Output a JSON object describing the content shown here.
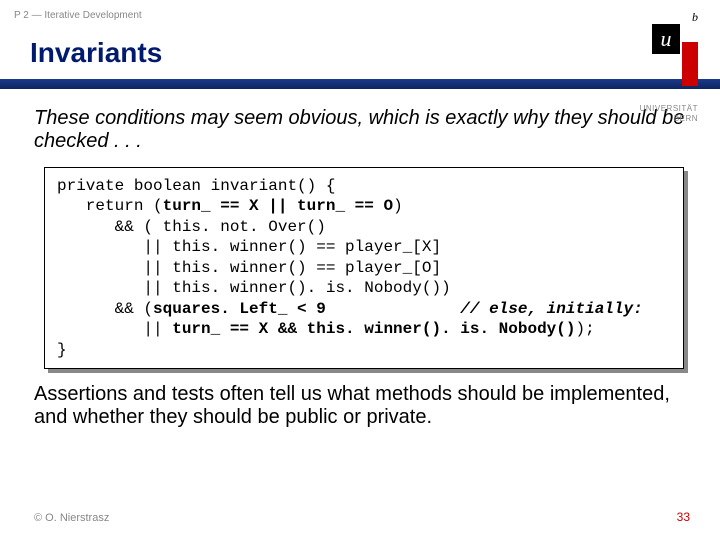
{
  "header": {
    "breadcrumb": "P 2 — Iterative Development",
    "title": "Invariants"
  },
  "logo": {
    "superscript": "b",
    "letter": "u",
    "caption_line1": "UNIVERSITÄT",
    "caption_line2": "BERN"
  },
  "body": {
    "lead": "These conditions may seem obvious, which is exactly why they should be checked . . .",
    "follow": "Assertions and tests often tell us what methods should be implemented, and whether they should be public or private."
  },
  "code": {
    "l1a": "private boolean invariant() {",
    "l2a": "   return (",
    "l2b": "turn_ == X || turn_ == O",
    "l2c": ")",
    "l3a": "      && ( this. not. Over()",
    "l4a": "         || this. winner() == player_[X]",
    "l5a": "         || this. winner() == player_[O]",
    "l6a": "         || this. winner(). is. Nobody())",
    "l7a": "      && (",
    "l7b": "squares. Left_ < 9",
    "l7c": "              ",
    "l7d": "// else, initially:",
    "l8a": "         || ",
    "l8b": "turn_ == X && this. winner(). is. Nobody()",
    "l8c": ");",
    "l9a": "}"
  },
  "footer": {
    "copyright": "© O. Nierstrasz",
    "page": "33"
  },
  "colors": {
    "title": "#001a6e",
    "underline": "#1a3a8a",
    "accent_red": "#cc0000",
    "muted": "#888888"
  }
}
